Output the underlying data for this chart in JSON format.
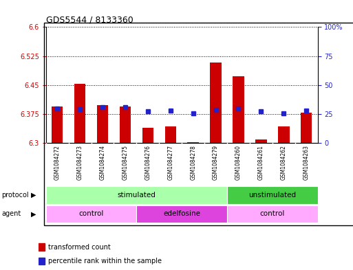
{
  "title": "GDS5544 / 8133360",
  "samples": [
    "GSM1084272",
    "GSM1084273",
    "GSM1084274",
    "GSM1084275",
    "GSM1084276",
    "GSM1084277",
    "GSM1084278",
    "GSM1084279",
    "GSM1084260",
    "GSM1084261",
    "GSM1084262",
    "GSM1084263"
  ],
  "red_values": [
    6.395,
    6.453,
    6.398,
    6.395,
    6.34,
    6.343,
    6.303,
    6.508,
    6.472,
    6.31,
    6.343,
    6.378
  ],
  "blue_values": [
    6.39,
    6.388,
    6.392,
    6.392,
    6.382,
    6.384,
    6.376,
    6.386,
    6.39,
    6.382,
    6.376,
    6.384
  ],
  "ymin": 6.3,
  "ymax": 6.6,
  "yticks_left": [
    6.3,
    6.375,
    6.45,
    6.525,
    6.6
  ],
  "ytick_labels_left": [
    "6.3",
    "6.375",
    "6.45",
    "6.525",
    "6.6"
  ],
  "right_yticks_pct": [
    0,
    25,
    50,
    75,
    100
  ],
  "right_ytick_labels": [
    "0",
    "25",
    "50",
    "75",
    "100%"
  ],
  "bar_color": "#cc0000",
  "blue_color": "#2222cc",
  "base": 6.3,
  "protocol_groups": [
    {
      "label": "stimulated",
      "start": 0,
      "end": 8,
      "color": "#aaffaa"
    },
    {
      "label": "unstimulated",
      "start": 8,
      "end": 12,
      "color": "#44cc44"
    }
  ],
  "agent_groups": [
    {
      "label": "control",
      "start": 0,
      "end": 4,
      "color": "#ffaaff"
    },
    {
      "label": "edelfosine",
      "start": 4,
      "end": 8,
      "color": "#dd44dd"
    },
    {
      "label": "control",
      "start": 8,
      "end": 12,
      "color": "#ffaaff"
    }
  ],
  "legend_red_label": "transformed count",
  "legend_blue_label": "percentile rank within the sample",
  "tick_color_left": "#cc0000",
  "tick_color_right": "#2222cc",
  "bar_width": 0.5
}
